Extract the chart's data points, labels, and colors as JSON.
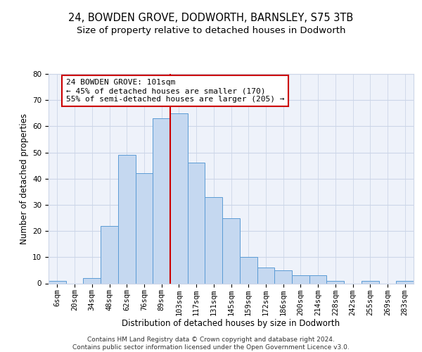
{
  "title1": "24, BOWDEN GROVE, DODWORTH, BARNSLEY, S75 3TB",
  "title2": "Size of property relative to detached houses in Dodworth",
  "xlabel": "Distribution of detached houses by size in Dodworth",
  "ylabel": "Number of detached properties",
  "categories": [
    "6sqm",
    "20sqm",
    "34sqm",
    "48sqm",
    "62sqm",
    "76sqm",
    "89sqm",
    "103sqm",
    "117sqm",
    "131sqm",
    "145sqm",
    "159sqm",
    "172sqm",
    "186sqm",
    "200sqm",
    "214sqm",
    "228sqm",
    "242sqm",
    "255sqm",
    "269sqm",
    "283sqm"
  ],
  "values": [
    1,
    0,
    2,
    22,
    49,
    42,
    63,
    65,
    46,
    33,
    25,
    10,
    6,
    5,
    3,
    3,
    1,
    0,
    1,
    0,
    1
  ],
  "bar_color": "#c5d8f0",
  "bar_edge_color": "#5b9bd5",
  "grid_color": "#ccd6e8",
  "background_color": "#eef2fa",
  "vline_x_idx": 7,
  "vline_color": "#cc0000",
  "annotation_text": "24 BOWDEN GROVE: 101sqm\n← 45% of detached houses are smaller (170)\n55% of semi-detached houses are larger (205) →",
  "annotation_box_color": "#cc0000",
  "ylim": [
    0,
    80
  ],
  "yticks": [
    0,
    10,
    20,
    30,
    40,
    50,
    60,
    70,
    80
  ],
  "footer": "Contains HM Land Registry data © Crown copyright and database right 2024.\nContains public sector information licensed under the Open Government Licence v3.0.",
  "title_fontsize": 10.5,
  "subtitle_fontsize": 9.5,
  "label_fontsize": 8.5,
  "tick_fontsize": 7.5,
  "footer_fontsize": 6.5
}
